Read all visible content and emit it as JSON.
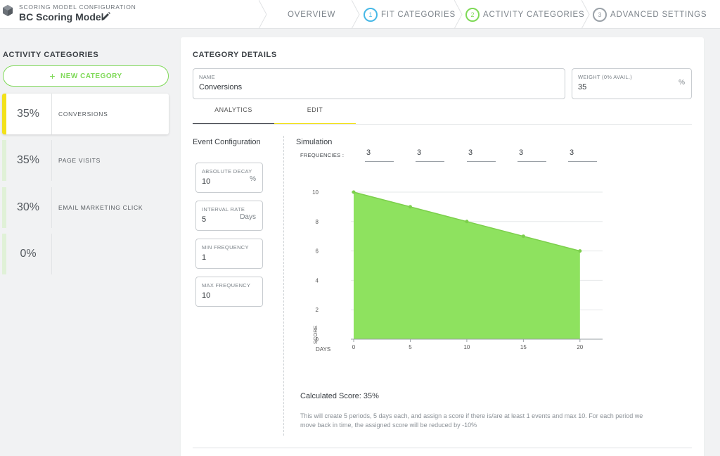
{
  "header": {
    "subtitle": "SCORING MODEL CONFIGURATION",
    "title": "BC Scoring Model",
    "steps": [
      {
        "num": "",
        "label": "OVERVIEW"
      },
      {
        "num": "1",
        "label": "FIT CATEGORIES"
      },
      {
        "num": "2",
        "label": "ACTIVITY CATEGORIES"
      },
      {
        "num": "3",
        "label": "ADVANCED SETTINGS"
      }
    ]
  },
  "sidebar": {
    "heading": "ACTIVITY CATEGORIES",
    "new_button": "NEW CATEGORY",
    "items": [
      {
        "percent": "35%",
        "name": "CONVERSIONS"
      },
      {
        "percent": "35%",
        "name": "PAGE VISITS"
      },
      {
        "percent": "30%",
        "name": "EMAIL MARKETING CLICK"
      },
      {
        "percent": "0%",
        "name": ""
      }
    ]
  },
  "details": {
    "heading": "CATEGORY DETAILS",
    "name": {
      "label": "NAME",
      "value": "Conversions"
    },
    "weight": {
      "label": "WEIGHT (0% AVAIL.)",
      "value": "35",
      "suffix": "%"
    },
    "tabs": [
      "ANALYTICS",
      "EDIT"
    ]
  },
  "event_config": {
    "title": "Event Configuration",
    "absolute_decay": {
      "label": "ABSOLUTE DECAY",
      "value": "10",
      "suffix": "%"
    },
    "interval_rate": {
      "label": "INTERVAL RATE",
      "value": "5",
      "suffix": "Days"
    },
    "min_frequency": {
      "label": "MIN FREQUENCY",
      "value": "1"
    },
    "max_frequency": {
      "label": "MAX FREQUENCY",
      "value": "10"
    }
  },
  "simulation": {
    "title": "Simulation",
    "frequencies_label": "FREQUENCIES :",
    "frequencies": [
      "3",
      "3",
      "3",
      "3",
      "3"
    ],
    "calculated_score": "Calculated Score: 35%",
    "description": "This will create 5 periods, 5 days each, and assign a score if there is/are at least 1 events and max 10. For each period we move back in time, the assigned score will be reduced by -10%"
  },
  "chart_data": {
    "type": "area",
    "x": [
      0,
      5,
      10,
      15,
      20
    ],
    "y": [
      10,
      9,
      8,
      7,
      6
    ],
    "xticks": [
      "0",
      "5",
      "10",
      "15",
      "20"
    ],
    "yticks": [
      "0",
      "2",
      "4",
      "6",
      "8",
      "10"
    ],
    "xlabel": "DAYS",
    "ylabel": "SCORE",
    "xlim": [
      0,
      22
    ],
    "ylim": [
      0,
      10
    ],
    "grid": true,
    "color": "#8ee25f"
  },
  "colors": {
    "accent_green": "#7ed957",
    "accent_blue": "#47b8e6",
    "accent_yellow": "#f2e11a"
  }
}
